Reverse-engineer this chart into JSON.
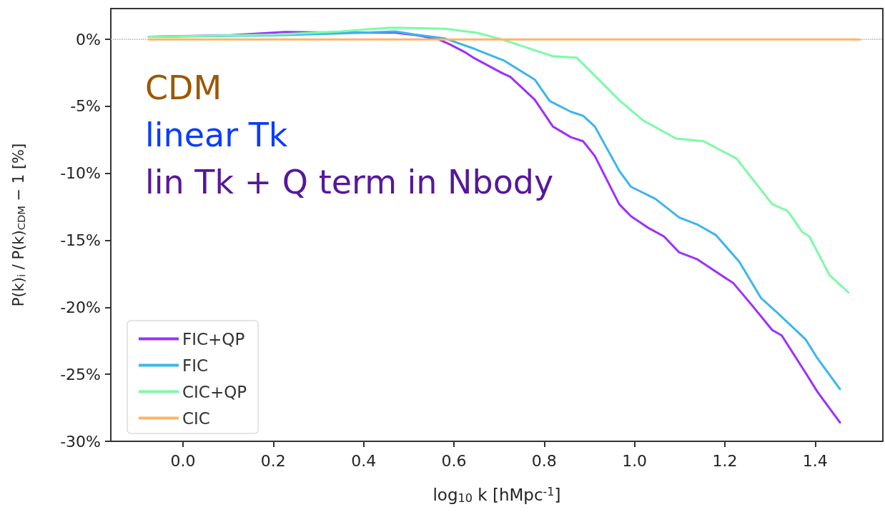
{
  "chart_data": {
    "type": "line",
    "xlabel": "log$_{10}$ k [hMpc$^{-1}$]",
    "ylabel": "P(k)$_{i}$ / P(k)$_{CDM}$ − 1 [%]",
    "annotations": [
      "CDM",
      "linear Tk",
      "lin Tk + Q term in Nbody"
    ],
    "xlim": [
      -0.16,
      1.55
    ],
    "xticks": [
      {
        "value": 0,
        "label": "0.0"
      },
      {
        "value": 0.2,
        "label": "0.2"
      },
      {
        "value": 0.4,
        "label": "0.4"
      },
      {
        "value": 0.6,
        "label": "0.6"
      },
      {
        "value": 0.8,
        "label": "0.8"
      },
      {
        "value": 1,
        "label": "1.0"
      },
      {
        "value": 1.2,
        "label": "1.2"
      },
      {
        "value": 1.4,
        "label": "1.4"
      }
    ],
    "ylim": [
      -30,
      2.3
    ],
    "yticks": [
      {
        "value": 0,
        "label": "0%"
      },
      {
        "value": -5,
        "label": "-5%"
      },
      {
        "value": -10,
        "label": "-10%"
      },
      {
        "value": -15,
        "label": "-15%"
      },
      {
        "value": -20,
        "label": "-20%"
      },
      {
        "value": -25,
        "label": "-25%"
      },
      {
        "value": -30,
        "label": "-30%"
      }
    ],
    "grid": false,
    "legend": "bottom left",
    "marker": "none",
    "line_style": "solid",
    "ref_lines": [
      {
        "axis": "y",
        "value": 0,
        "color": "#aaaaaa",
        "line_style": "dotted"
      }
    ],
    "series": [
      {
        "name": "FIC+QP",
        "color": "#9b30ff",
        "x": [
          -0.076,
          0.1,
          0.226,
          0.35,
          0.47,
          0.52,
          0.566,
          0.591,
          0.623,
          0.645,
          0.706,
          0.725,
          0.779,
          0.819,
          0.859,
          0.886,
          0.912,
          0.966,
          0.992,
          1.032,
          1.065,
          1.099,
          1.138,
          1.219,
          1.259,
          1.305,
          1.326,
          1.379,
          1.405,
          1.455
        ],
        "values": [
          0.2,
          0.3,
          0.55,
          0.5,
          0.5,
          0.3,
          0,
          -0.37,
          -0.93,
          -1.4,
          -2.5,
          -2.8,
          -4.5,
          -6.5,
          -7.3,
          -7.6,
          -8.7,
          -12.3,
          -13.2,
          -14.1,
          -14.7,
          -15.9,
          -16.4,
          -18.2,
          -19.8,
          -21.7,
          -22.1,
          -24.9,
          -26.3,
          -28.6
        ]
      },
      {
        "name": "FIC",
        "color": "#3bb5ee",
        "x": [
          -0.076,
          0.2,
          0.35,
          0.47,
          0.512,
          0.579,
          0.645,
          0.712,
          0.779,
          0.812,
          0.859,
          0.886,
          0.912,
          0.966,
          0.992,
          1.046,
          1.099,
          1.138,
          1.18,
          1.232,
          1.28,
          1.313,
          1.379,
          1.405,
          1.455
        ],
        "values": [
          0.2,
          0.3,
          0.45,
          0.59,
          0.37,
          0.08,
          -0.7,
          -1.6,
          -3.0,
          -4.6,
          -5.4,
          -5.7,
          -6.5,
          -9.8,
          -11.0,
          -11.9,
          -13.3,
          -13.8,
          -14.6,
          -16.6,
          -19.3,
          -20.3,
          -22.4,
          -23.8,
          -26.1
        ]
      },
      {
        "name": "CIC+QP",
        "color": "#7dfaa8",
        "x": [
          -0.076,
          0.2,
          0.35,
          0.46,
          0.51,
          0.58,
          0.65,
          0.706,
          0.76,
          0.819,
          0.872,
          0.912,
          0.965,
          1.019,
          1.092,
          1.153,
          1.226,
          1.305,
          1.339,
          1.372,
          1.387,
          1.432,
          1.474
        ],
        "values": [
          0.2,
          0.35,
          0.6,
          0.88,
          0.85,
          0.8,
          0.5,
          0,
          -0.6,
          -1.26,
          -1.37,
          -2.7,
          -4.5,
          -6.05,
          -7.4,
          -7.6,
          -8.9,
          -12.3,
          -12.8,
          -14.4,
          -14.7,
          -17.6,
          -18.9
        ]
      },
      {
        "name": "CIC",
        "color": "#ffb366",
        "x": [
          -0.076,
          1.499
        ],
        "values": [
          0,
          0
        ]
      }
    ]
  }
}
